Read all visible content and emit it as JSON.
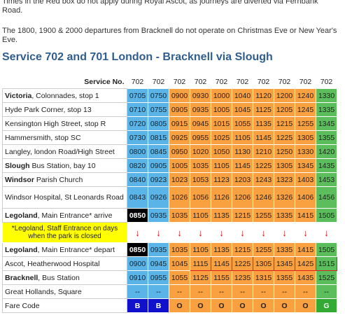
{
  "notes": [
    "Times in the Red box do not apply during Royal Ascot, as journeys are diverted via Fernbank Road.",
    "The 1800, 1900 & 2000 departures from Bracknell do not operate on Christmas Eve or New Year's Eve."
  ],
  "title": "Service 702 and 701 London - Bracknell via Slough",
  "header_label": "Service No.",
  "services": [
    "702",
    "702",
    "702",
    "702",
    "702",
    "702",
    "702",
    "702",
    "702",
    "702"
  ],
  "column_colors": [
    "b",
    "b",
    "o",
    "o",
    "o",
    "o",
    "o",
    "o",
    "o",
    "g"
  ],
  "rows": [
    {
      "stop_bold": "Victoria",
      "stop_rest": ", Colonnades, stop 1",
      "times": [
        "0705",
        "0750",
        "0900",
        "0930",
        "1000",
        "1040",
        "1120",
        "1200",
        "1240",
        "1330"
      ]
    },
    {
      "stop_bold": "",
      "stop_rest": "Hyde Park Corner, stop 13",
      "times": [
        "0710",
        "0755",
        "0905",
        "0935",
        "1005",
        "1045",
        "1125",
        "1205",
        "1245",
        "1335"
      ]
    },
    {
      "stop_bold": "",
      "stop_rest": "Kensington High Street, stop R",
      "times": [
        "0720",
        "0805",
        "0915",
        "0945",
        "1015",
        "1055",
        "1135",
        "1215",
        "1255",
        "1345"
      ]
    },
    {
      "stop_bold": "",
      "stop_rest": "Hammersmith, stop SC",
      "times": [
        "0730",
        "0815",
        "0925",
        "0955",
        "1025",
        "1105",
        "1145",
        "1225",
        "1305",
        "1355"
      ]
    },
    {
      "stop_bold": "",
      "stop_rest": "Langley, london Road/High Street",
      "times": [
        "0800",
        "0845",
        "0950",
        "1020",
        "1050",
        "1130",
        "1210",
        "1250",
        "1330",
        "1420"
      ]
    },
    {
      "stop_bold": "Slough",
      "stop_rest": " Bus Station, bay 10",
      "times": [
        "0820",
        "0905",
        "1005",
        "1035",
        "1105",
        "1145",
        "1225",
        "1305",
        "1345",
        "1435"
      ]
    },
    {
      "stop_bold": "Windsor",
      "stop_rest": " Parish Church",
      "times": [
        "0840",
        "0923",
        "1023",
        "1053",
        "1123",
        "1203",
        "1243",
        "1323",
        "1403",
        "1453"
      ]
    },
    {
      "stop_bold": "",
      "stop_rest": "Windsor Hospital, St Leonards Road",
      "times": [
        "0843",
        "0926",
        "1026",
        "1056",
        "1126",
        "1206",
        "1246",
        "1326",
        "1406",
        "1456"
      ],
      "tall": true
    },
    {
      "stop_bold": "Legoland",
      "stop_rest": ", Main Entrance* arrive",
      "times": [
        "0850",
        "0935",
        "1035",
        "1105",
        "1135",
        "1215",
        "1255",
        "1335",
        "1415",
        "1505"
      ],
      "black": [
        0
      ]
    },
    {
      "note": "*Legoland, Staff Entrance on days when the park is closed",
      "arrow": "↓"
    },
    {
      "stop_bold": "Legoland",
      "stop_rest": ", Main Entrance* depart",
      "times": [
        "0850",
        "0935",
        "1035",
        "1105",
        "1135",
        "1215",
        "1255",
        "1335",
        "1415",
        "1505"
      ],
      "black": [
        0
      ]
    },
    {
      "stop_bold": "",
      "stop_rest": "Ascot, Heatherwood Hospital",
      "times": [
        "0900",
        "0945",
        "1045",
        "1115",
        "1145",
        "1225",
        "1305",
        "1345",
        "1425",
        "1515"
      ],
      "red": [
        3,
        4,
        5,
        6,
        7,
        8,
        9
      ]
    },
    {
      "stop_bold": "Bracknell",
      "stop_rest": ", Bus Station",
      "times": [
        "0910",
        "0955",
        "1055",
        "1125",
        "1155",
        "1235",
        "1315",
        "1355",
        "1435",
        "1525"
      ]
    },
    {
      "stop_bold": "",
      "stop_rest": "Great Hollands, Square",
      "times": [
        "--",
        "--",
        "--",
        "--",
        "--",
        "--",
        "--",
        "--",
        "--",
        "--"
      ]
    }
  ],
  "fare_label": "Fare Code",
  "fare_codes": [
    "B",
    "B",
    "O",
    "O",
    "O",
    "O",
    "O",
    "O",
    "O",
    "G"
  ]
}
